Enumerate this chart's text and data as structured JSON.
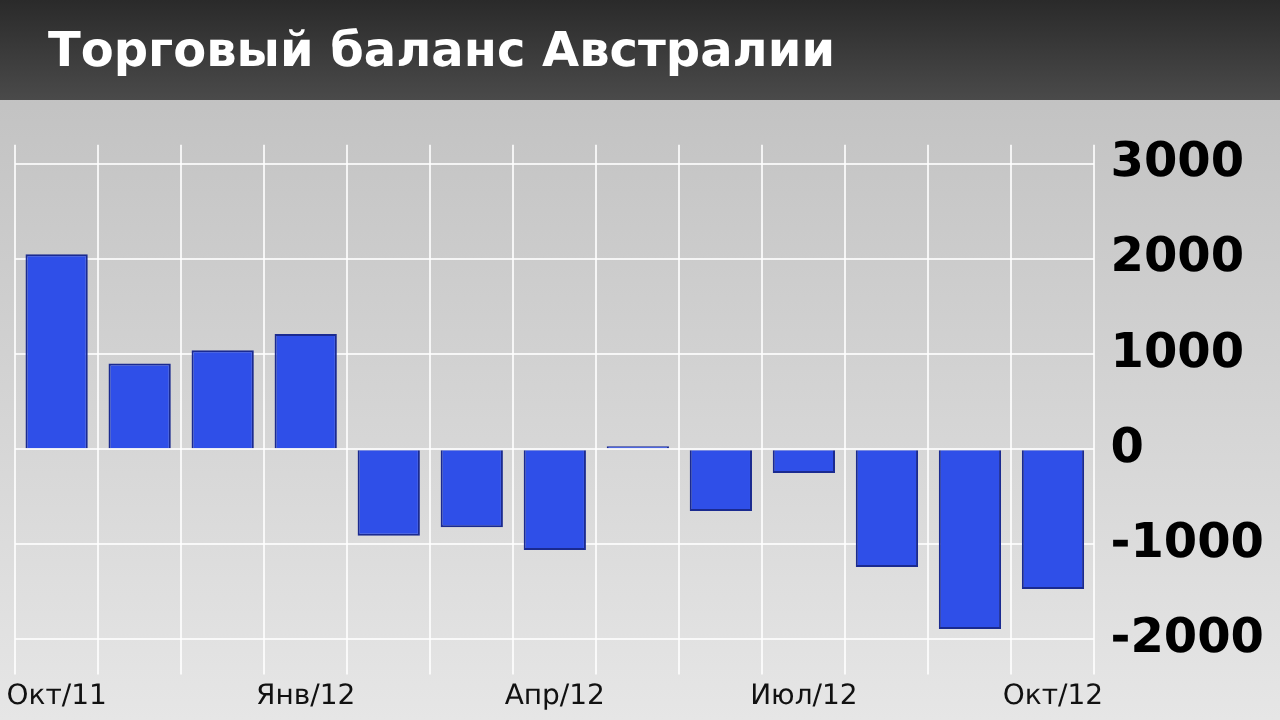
{
  "chart_data": {
    "type": "bar",
    "title": "Торговый баланс Австралии",
    "categories": [
      "Окт/11",
      null,
      null,
      "Янв/12",
      null,
      null,
      "Апр/12",
      null,
      null,
      "Июл/12",
      null,
      null,
      "Окт/12"
    ],
    "values": [
      2050,
      900,
      1040,
      1210,
      -910,
      -820,
      -1060,
      30,
      -650,
      -250,
      -1240,
      -1890,
      -1470
    ],
    "color": "#2f4fe8",
    "ylim": [
      -2200,
      3200
    ],
    "yticks": [
      -2000,
      -1000,
      0,
      1000,
      2000,
      3000
    ],
    "grid": true
  }
}
